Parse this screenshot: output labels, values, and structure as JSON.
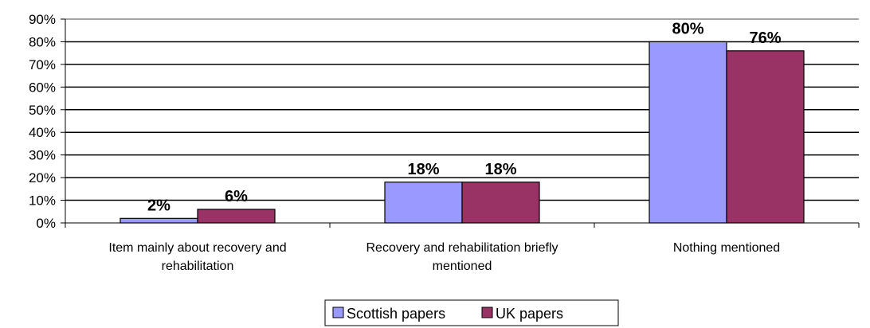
{
  "chart_data": {
    "type": "bar",
    "categories": [
      [
        "Item mainly about recovery and",
        "rehabilitation"
      ],
      [
        "Recovery and rehabilitation briefly",
        "mentioned"
      ],
      [
        "Nothing mentioned"
      ]
    ],
    "series": [
      {
        "name": "Scottish papers",
        "values": [
          2,
          18,
          80
        ],
        "labels": [
          "2%",
          "18%",
          "80%"
        ],
        "color": "#9999ff"
      },
      {
        "name": "UK papers",
        "values": [
          6,
          18,
          76
        ],
        "labels": [
          "6%",
          "18%",
          "76%"
        ],
        "color": "#993366"
      }
    ],
    "ylim": [
      0,
      90
    ],
    "yticks": [
      "0%",
      "10%",
      "20%",
      "30%",
      "40%",
      "50%",
      "60%",
      "70%",
      "80%",
      "90%"
    ],
    "grid": true,
    "legend": "bottom",
    "title": "",
    "xlabel": "",
    "ylabel": ""
  }
}
